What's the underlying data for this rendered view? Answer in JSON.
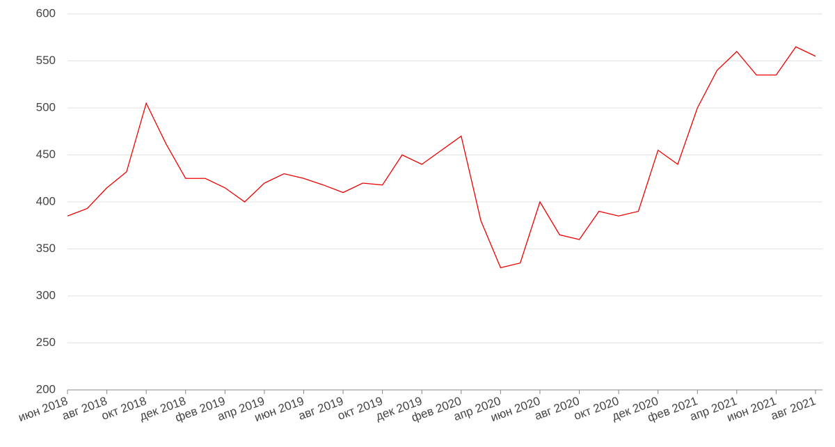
{
  "chart_data": {
    "type": "line",
    "x": [
      "2018-06",
      "2018-07",
      "2018-08",
      "2018-09",
      "2018-10",
      "2018-11",
      "2018-12",
      "2019-01",
      "2019-02",
      "2019-03",
      "2019-04",
      "2019-05",
      "2019-06",
      "2019-07",
      "2019-08",
      "2019-09",
      "2019-10",
      "2019-11",
      "2019-12",
      "2020-01",
      "2020-02",
      "2020-03",
      "2020-04",
      "2020-05",
      "2020-06",
      "2020-07",
      "2020-08",
      "2020-09",
      "2020-10",
      "2020-11",
      "2020-12",
      "2021-01",
      "2021-02",
      "2021-03",
      "2021-04",
      "2021-05",
      "2021-06",
      "2021-07",
      "2021-08"
    ],
    "series": [
      {
        "color": "#ee0000",
        "values": [
          385,
          393,
          415,
          432,
          505,
          462,
          425,
          425,
          415,
          400,
          420,
          430,
          425,
          418,
          410,
          420,
          418,
          450,
          440,
          455,
          470,
          380,
          330,
          335,
          400,
          365,
          360,
          390,
          385,
          390,
          455,
          440,
          500,
          540,
          560,
          535,
          535,
          565,
          555
        ]
      }
    ],
    "xlim": [
      "2018-06",
      "2021-08"
    ],
    "xticks": [
      {
        "value": "2018-06",
        "label": "июн 2018"
      },
      {
        "value": "2018-08",
        "label": "авг 2018"
      },
      {
        "value": "2018-10",
        "label": "окт 2018"
      },
      {
        "value": "2018-12",
        "label": "дек 2018"
      },
      {
        "value": "2019-02",
        "label": "фев 2019"
      },
      {
        "value": "2019-04",
        "label": "апр 2019"
      },
      {
        "value": "2019-06",
        "label": "июн 2019"
      },
      {
        "value": "2019-08",
        "label": "авг 2019"
      },
      {
        "value": "2019-10",
        "label": "окт 2019"
      },
      {
        "value": "2019-12",
        "label": "дек 2019"
      },
      {
        "value": "2020-02",
        "label": "фев 2020"
      },
      {
        "value": "2020-04",
        "label": "апр 2020"
      },
      {
        "value": "2020-06",
        "label": "июн 2020"
      },
      {
        "value": "2020-08",
        "label": "авг 2020"
      },
      {
        "value": "2020-10",
        "label": "окт 2020"
      },
      {
        "value": "2020-12",
        "label": "дек 2020"
      },
      {
        "value": "2021-02",
        "label": "фев 2021"
      },
      {
        "value": "2021-04",
        "label": "апр 2021"
      },
      {
        "value": "2021-06",
        "label": "июн 2021"
      },
      {
        "value": "2021-08",
        "label": "авг 2021"
      }
    ],
    "ylim": [
      200,
      600
    ],
    "yticks": [
      200,
      250,
      300,
      350,
      400,
      450,
      500,
      550,
      600
    ],
    "grid": true
  }
}
